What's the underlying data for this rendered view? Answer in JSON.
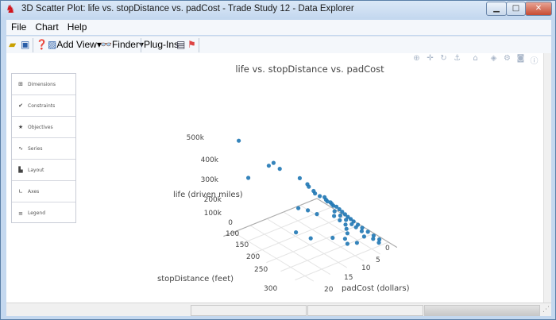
{
  "window": {
    "title": "3D Scatter Plot: life vs. stopDistance vs. padCost - Trade Study 12 - Data Explorer"
  },
  "menu": [
    "File",
    "Chart",
    "Help"
  ],
  "toolbar": {
    "add_view": "Add View",
    "finder": "Finder",
    "plugins": "Plug-Ins"
  },
  "sidebar": {
    "items": [
      {
        "label": "Dimensions",
        "icon": "grid-icon"
      },
      {
        "label": "Constraints",
        "icon": "check-icon"
      },
      {
        "label": "Objectives",
        "icon": "star-icon"
      },
      {
        "label": "Series",
        "icon": "wave-icon"
      },
      {
        "label": "Layout",
        "icon": "page-icon"
      },
      {
        "label": "Axes",
        "icon": "axes-icon"
      },
      {
        "label": "Legend",
        "icon": "list-icon"
      }
    ]
  },
  "modebar": [
    "zoom-icon",
    "pan-icon",
    "orbit-icon",
    "turntable-icon",
    "home-icon",
    "hover-icon",
    "settings-icon",
    "camera-icon",
    "info-icon"
  ],
  "chart_data": {
    "type": "scatter3d",
    "title": "life vs. stopDistance vs. padCost",
    "marker_color": "#1f77b4",
    "axes": {
      "z": {
        "label": "life (driven miles)",
        "ticks": [
          "0",
          "100k",
          "200k",
          "300k",
          "400k",
          "500k"
        ]
      },
      "x": {
        "label": "stopDistance (feet)",
        "ticks": [
          "100",
          "150",
          "200",
          "250",
          "300"
        ]
      },
      "y": {
        "label": "padCost (dollars)",
        "ticks": [
          "0",
          "5",
          "10",
          "15",
          "20"
        ]
      }
    },
    "points": [
      {
        "stopDistance": 60,
        "padCost": 20,
        "life": 490000
      },
      {
        "stopDistance": 95,
        "padCost": 14,
        "life": 320000
      },
      {
        "stopDistance": 100,
        "padCost": 13,
        "life": 335000
      },
      {
        "stopDistance": 110,
        "padCost": 12,
        "life": 300000
      },
      {
        "stopDistance": 70,
        "padCost": 18,
        "life": 250000
      },
      {
        "stopDistance": 130,
        "padCost": 5,
        "life": 150000
      },
      {
        "stopDistance": 135,
        "padCost": 4,
        "life": 120000
      },
      {
        "stopDistance": 140,
        "padCost": 4,
        "life": 110000
      },
      {
        "stopDistance": 145,
        "padCost": 3,
        "life": 90000
      },
      {
        "stopDistance": 150,
        "padCost": 2,
        "life": 80000
      },
      {
        "stopDistance": 155,
        "padCost": 2,
        "life": 70000
      },
      {
        "stopDistance": 160,
        "padCost": 2,
        "life": 65000
      },
      {
        "stopDistance": 165,
        "padCost": 1.5,
        "life": 60000
      },
      {
        "stopDistance": 170,
        "padCost": 1.5,
        "life": 55000
      },
      {
        "stopDistance": 175,
        "padCost": 1.5,
        "life": 50000
      },
      {
        "stopDistance": 180,
        "padCost": 1,
        "life": 45000
      },
      {
        "stopDistance": 185,
        "padCost": 2,
        "life": 30000
      },
      {
        "stopDistance": 190,
        "padCost": 1,
        "life": 40000
      },
      {
        "stopDistance": 195,
        "padCost": 3,
        "life": 20000
      },
      {
        "stopDistance": 200,
        "padCost": 1,
        "life": 35000
      },
      {
        "stopDistance": 205,
        "padCost": 2,
        "life": 25000
      },
      {
        "stopDistance": 210,
        "padCost": 1,
        "life": 30000
      },
      {
        "stopDistance": 215,
        "padCost": 3,
        "life": 15000
      },
      {
        "stopDistance": 220,
        "padCost": 1,
        "life": 25000
      },
      {
        "stopDistance": 225,
        "padCost": 2,
        "life": 20000
      },
      {
        "stopDistance": 230,
        "padCost": 1,
        "life": 22000
      },
      {
        "stopDistance": 235,
        "padCost": 3,
        "life": 10000
      },
      {
        "stopDistance": 240,
        "padCost": 1,
        "life": 18000
      },
      {
        "stopDistance": 245,
        "padCost": 2,
        "life": 15000
      },
      {
        "stopDistance": 250,
        "padCost": 4,
        "life": 8000
      },
      {
        "stopDistance": 255,
        "padCost": 1,
        "life": 14000
      },
      {
        "stopDistance": 260,
        "padCost": 2,
        "life": 12000
      },
      {
        "stopDistance": 265,
        "padCost": 5,
        "life": 5000
      },
      {
        "stopDistance": 270,
        "padCost": 1,
        "life": 11000
      },
      {
        "stopDistance": 280,
        "padCost": 2,
        "life": 9000
      },
      {
        "stopDistance": 290,
        "padCost": 1,
        "life": 8000
      },
      {
        "stopDistance": 300,
        "padCost": 3,
        "life": 6000
      },
      {
        "stopDistance": 310,
        "padCost": 1,
        "life": 6000
      },
      {
        "stopDistance": 320,
        "padCost": 2,
        "life": 5000
      },
      {
        "stopDistance": 330,
        "padCost": 1,
        "life": 4000
      },
      {
        "stopDistance": 340,
        "padCost": 2,
        "life": 3000
      },
      {
        "stopDistance": 140,
        "padCost": 9,
        "life": 60000
      },
      {
        "stopDistance": 150,
        "padCost": 7,
        "life": 40000
      },
      {
        "stopDistance": 170,
        "padCost": 6,
        "life": 30000
      },
      {
        "stopDistance": 190,
        "padCost": 14,
        "life": 5000
      },
      {
        "stopDistance": 230,
        "padCost": 13,
        "life": 3000
      },
      {
        "stopDistance": 260,
        "padCost": 9,
        "life": 5000
      },
      {
        "stopDistance": 280,
        "padCost": 7,
        "life": 4000
      },
      {
        "stopDistance": 300,
        "padCost": 8,
        "life": 3000
      },
      {
        "stopDistance": 310,
        "padCost": 6,
        "life": 3000
      },
      {
        "stopDistance": 110,
        "padCost": 6,
        "life": 190000
      },
      {
        "stopDistance": 125,
        "padCost": 5,
        "life": 160000
      }
    ]
  }
}
